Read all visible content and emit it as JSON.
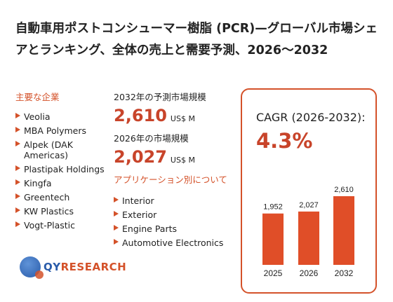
{
  "title": "自動車用ポストコンシューマー樹脂 (PCR)—グローバル市場シェアとランキング、全体の売上と需要予測、2026～2032",
  "companies_label": "主要な企業",
  "companies": [
    "Veolia",
    "MBA Polymers",
    "Alpek (DAK Americas)",
    "Plastipak Holdings",
    "Kingfa",
    "Greentech",
    "KW Plastics",
    "Vogt-Plastic"
  ],
  "forecast": {
    "label": "2032年の予測市場規模",
    "value": "2,610",
    "unit": "US$ M"
  },
  "current": {
    "label": "2026年の市場規模",
    "value": "2,027",
    "unit": "US$ M"
  },
  "applications_label": "アプリケーション別について",
  "applications": [
    "Interior",
    "Exterior",
    "Engine Parts",
    "Automotive Electronics"
  ],
  "cagr": {
    "label": "CAGR (2026-2032):",
    "value": "4.3%"
  },
  "chart_data": {
    "type": "bar",
    "categories": [
      "2025",
      "2026",
      "2032"
    ],
    "values": [
      1952,
      2027,
      2610
    ],
    "value_labels": [
      "1,952",
      "2,027",
      "2,610"
    ],
    "color": "#e04e28",
    "ylim": [
      0,
      2610
    ]
  },
  "logo": {
    "text_primary": "QY",
    "text_secondary": "RESEARCH"
  },
  "colors": {
    "accent": "#d4522a",
    "value": "#c8442a"
  }
}
